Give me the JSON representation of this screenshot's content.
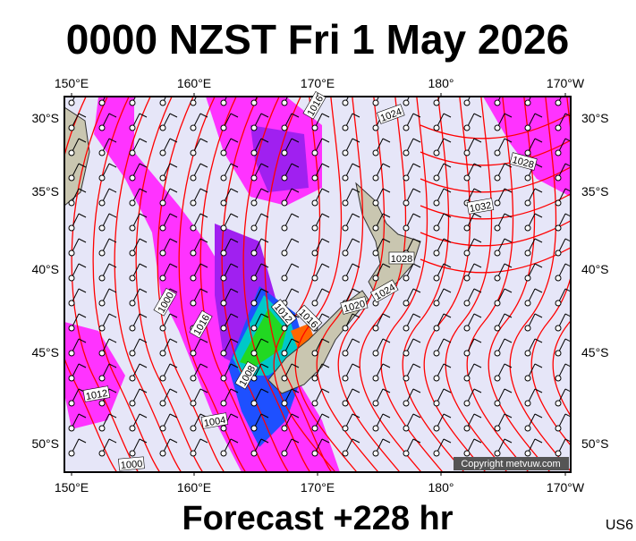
{
  "header": {
    "title": "0000 NZST Fri 1 May 2026"
  },
  "map": {
    "top_axis": [
      "150°E",
      "160°E",
      "170°E",
      "180°",
      "170°W"
    ],
    "bottom_axis": [
      "150°E",
      "160°E",
      "170°E",
      "180°",
      "170°W"
    ],
    "left_axis": [
      "30°S",
      "35°S",
      "40°S",
      "45°S",
      "50°S"
    ],
    "right_axis": [
      "30°S",
      "35°S",
      "40°S",
      "45°S",
      "50°S"
    ],
    "isobar_labels": [
      "1016",
      "1024",
      "1028",
      "1032",
      "1028",
      "1024",
      "1020",
      "1016",
      "1012",
      "1016",
      "1000",
      "1008",
      "1012",
      "1004",
      "1000"
    ],
    "copyright": "Copyright metvuw.com"
  },
  "footer": {
    "forecast": "Forecast +228 hr",
    "code": "US6"
  }
}
